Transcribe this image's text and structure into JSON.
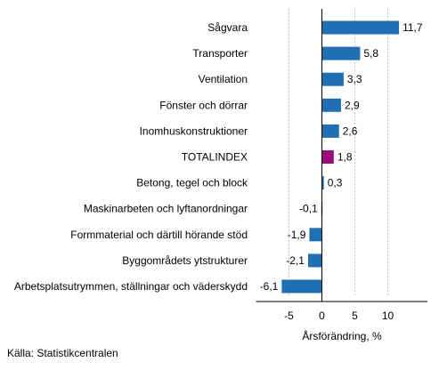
{
  "chart_data": {
    "type": "bar",
    "orientation": "horizontal",
    "categories": [
      "Sågvara",
      "Transporter",
      "Ventilation",
      "Fönster och dörrar",
      "Inomhuskonstruktioner",
      "TOTALINDEX",
      "Betong, tegel och block",
      "Maskinarbeten och lyftanordningar",
      "Formmaterial och därtill hörande stöd",
      "Byggområdets ytstrukturer",
      "Arbetsplatsutrymmen, ställningar och väderskydd"
    ],
    "values": [
      11.7,
      5.8,
      3.3,
      2.9,
      2.6,
      1.8,
      0.3,
      -0.1,
      -1.9,
      -2.1,
      -6.1
    ],
    "value_labels": [
      "11,7",
      "5,8",
      "3,3",
      "2,9",
      "2,6",
      "1,8",
      "0,3",
      "-0,1",
      "-1,9",
      "-2,1",
      "-6,1"
    ],
    "highlight_category": "TOTALINDEX",
    "xlabel": "Årsförändring, %",
    "xlim": [
      -10,
      16
    ],
    "xticks": [
      -5,
      0,
      5,
      10
    ],
    "xtick_labels": [
      "-5",
      "0",
      "5",
      "10"
    ],
    "grid": "vertical dashed",
    "colors": {
      "bar": "#1f6fb2",
      "highlight": "#9c0c7c",
      "grid": "#c8c8c8",
      "axis": "#000000"
    }
  },
  "source": "Källa: Statistikcentralen"
}
